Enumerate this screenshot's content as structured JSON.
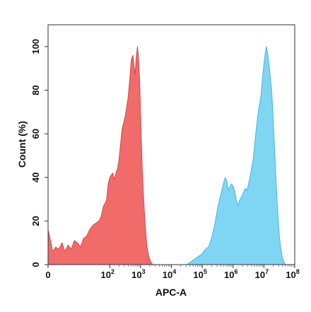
{
  "chart_data": {
    "type": "area",
    "xlabel": "APC-A",
    "ylabel": "Count (%)",
    "x_scale": "log",
    "xlim": [
      0,
      8
    ],
    "ylim": [
      0,
      110
    ],
    "x_ticks": [
      {
        "label": "0",
        "value": 0
      },
      {
        "label": "10",
        "exp": "2",
        "value": 2
      },
      {
        "label": "10",
        "exp": "3",
        "value": 3
      },
      {
        "label": "10",
        "exp": "4",
        "value": 4
      },
      {
        "label": "10",
        "exp": "5",
        "value": 5
      },
      {
        "label": "10",
        "exp": "6",
        "value": 6
      },
      {
        "label": "10",
        "exp": "7",
        "value": 7
      },
      {
        "label": "10",
        "exp": "8",
        "value": 8
      }
    ],
    "y_ticks": [
      0,
      20,
      40,
      60,
      80,
      100
    ],
    "grid": false,
    "legend": "none",
    "series": [
      {
        "color": "#f26b6b",
        "edge": "#d04848",
        "points": [
          [
            0.0,
            16
          ],
          [
            0.08,
            11
          ],
          [
            0.15,
            6
          ],
          [
            0.25,
            8
          ],
          [
            0.35,
            7
          ],
          [
            0.45,
            10
          ],
          [
            0.55,
            6
          ],
          [
            0.65,
            9
          ],
          [
            0.75,
            7
          ],
          [
            0.85,
            11
          ],
          [
            0.95,
            10
          ],
          [
            1.05,
            8
          ],
          [
            1.15,
            12
          ],
          [
            1.25,
            13
          ],
          [
            1.35,
            16
          ],
          [
            1.45,
            18
          ],
          [
            1.55,
            19
          ],
          [
            1.65,
            20
          ],
          [
            1.72,
            22
          ],
          [
            1.8,
            27
          ],
          [
            1.85,
            28
          ],
          [
            1.9,
            30
          ],
          [
            1.95,
            37
          ],
          [
            2.0,
            40
          ],
          [
            2.05,
            41
          ],
          [
            2.1,
            42
          ],
          [
            2.15,
            39
          ],
          [
            2.2,
            42
          ],
          [
            2.25,
            44
          ],
          [
            2.3,
            48
          ],
          [
            2.35,
            55
          ],
          [
            2.4,
            62
          ],
          [
            2.45,
            65
          ],
          [
            2.5,
            68
          ],
          [
            2.55,
            72
          ],
          [
            2.6,
            77
          ],
          [
            2.65,
            85
          ],
          [
            2.7,
            94
          ],
          [
            2.75,
            96
          ],
          [
            2.78,
            92
          ],
          [
            2.82,
            87
          ],
          [
            2.86,
            95
          ],
          [
            2.9,
            100
          ],
          [
            2.93,
            95
          ],
          [
            2.97,
            84
          ],
          [
            3.0,
            68
          ],
          [
            3.05,
            45
          ],
          [
            3.1,
            30
          ],
          [
            3.15,
            18
          ],
          [
            3.2,
            9
          ],
          [
            3.26,
            4
          ],
          [
            3.33,
            1
          ],
          [
            3.4,
            0
          ]
        ]
      },
      {
        "color": "#7fd6f2",
        "edge": "#45b8de",
        "points": [
          [
            4.5,
            0
          ],
          [
            4.6,
            1
          ],
          [
            4.7,
            2
          ],
          [
            4.8,
            3
          ],
          [
            4.9,
            4
          ],
          [
            5.0,
            5
          ],
          [
            5.1,
            7
          ],
          [
            5.2,
            8
          ],
          [
            5.3,
            12
          ],
          [
            5.4,
            18
          ],
          [
            5.5,
            26
          ],
          [
            5.6,
            32
          ],
          [
            5.7,
            38
          ],
          [
            5.75,
            40
          ],
          [
            5.8,
            38
          ],
          [
            5.85,
            34
          ],
          [
            5.9,
            36
          ],
          [
            5.95,
            37
          ],
          [
            6.0,
            36
          ],
          [
            6.05,
            34
          ],
          [
            6.1,
            30
          ],
          [
            6.15,
            27
          ],
          [
            6.2,
            29
          ],
          [
            6.3,
            32
          ],
          [
            6.4,
            35
          ],
          [
            6.45,
            34
          ],
          [
            6.5,
            37
          ],
          [
            6.55,
            40
          ],
          [
            6.6,
            44
          ],
          [
            6.65,
            48
          ],
          [
            6.7,
            55
          ],
          [
            6.75,
            62
          ],
          [
            6.8,
            68
          ],
          [
            6.85,
            73
          ],
          [
            6.9,
            77
          ],
          [
            6.95,
            85
          ],
          [
            7.0,
            92
          ],
          [
            7.05,
            98
          ],
          [
            7.08,
            100
          ],
          [
            7.12,
            97
          ],
          [
            7.18,
            90
          ],
          [
            7.25,
            80
          ],
          [
            7.3,
            67
          ],
          [
            7.35,
            52
          ],
          [
            7.4,
            37
          ],
          [
            7.45,
            24
          ],
          [
            7.5,
            13
          ],
          [
            7.55,
            7
          ],
          [
            7.6,
            3
          ],
          [
            7.65,
            1
          ],
          [
            7.7,
            0
          ]
        ]
      }
    ]
  }
}
